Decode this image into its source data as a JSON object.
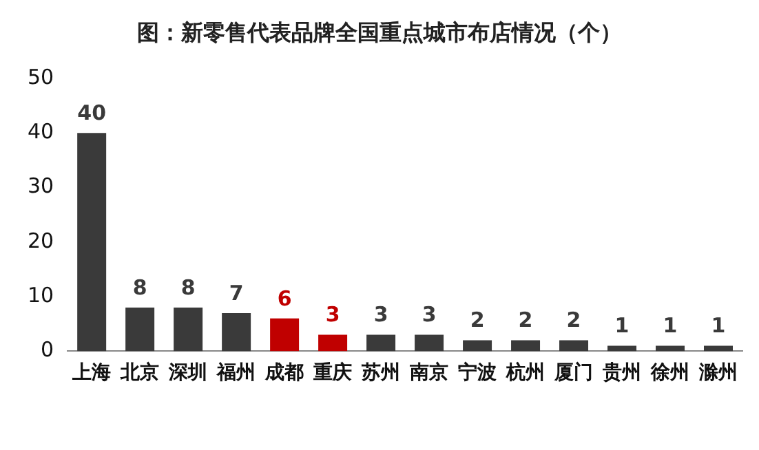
{
  "chart_data": {
    "type": "bar",
    "title": "图：新零售代表品牌全国重点城市布店情况（个）",
    "categories": [
      "上海",
      "北京",
      "深圳",
      "福州",
      "成都",
      "重庆",
      "苏州",
      "南京",
      "宁波",
      "杭州",
      "厦门",
      "贵州",
      "徐州",
      "滁州"
    ],
    "values": [
      40,
      8,
      8,
      7,
      6,
      3,
      3,
      3,
      2,
      2,
      2,
      1,
      1,
      1
    ],
    "colors": [
      "#3a3a3a",
      "#3a3a3a",
      "#3a3a3a",
      "#3a3a3a",
      "#c00000",
      "#c00000",
      "#3a3a3a",
      "#3a3a3a",
      "#3a3a3a",
      "#3a3a3a",
      "#3a3a3a",
      "#3a3a3a",
      "#3a3a3a",
      "#3a3a3a"
    ],
    "ylim": [
      0,
      50
    ],
    "yticks": [
      0,
      10,
      20,
      30,
      40,
      50
    ],
    "grid": false,
    "legend": false,
    "data_labels": true
  }
}
